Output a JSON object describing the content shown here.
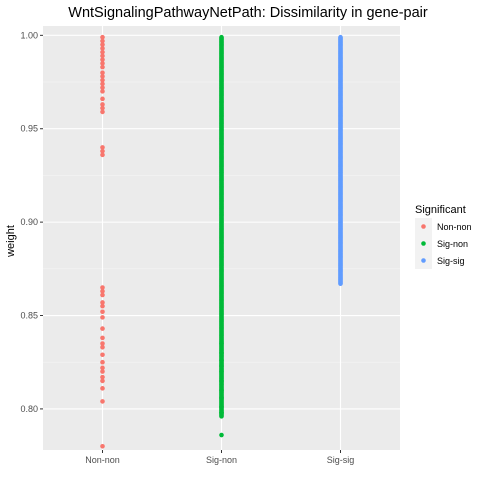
{
  "chart_data": {
    "type": "scatter",
    "title": "WntSignalingPathwayNetPath: Dissimilarity in gene-pair",
    "xlabel": "",
    "ylabel": "weight",
    "categories": [
      "Non-non",
      "Sig-non",
      "Sig-sig"
    ],
    "ylim": [
      0.778,
      1.005
    ],
    "yticks": [
      0.8,
      0.85,
      0.9,
      0.95,
      1.0
    ],
    "ytick_labels": [
      "0.80",
      "0.85",
      "0.90",
      "0.95",
      "1.00"
    ],
    "grid": true,
    "legend": {
      "title": "Significant",
      "placement": "right",
      "entries": [
        "Non-non",
        "Sig-non",
        "Sig-sig"
      ]
    },
    "colors": {
      "Non-non": "#F8766D",
      "Sig-non": "#00BA38",
      "Sig-sig": "#619CFF",
      "panel": "#EBEBEB",
      "grid": "#FFFFFF"
    },
    "series": [
      {
        "name": "Non-non",
        "x": "Non-non",
        "values": [
          0.999,
          0.997,
          0.995,
          0.993,
          0.991,
          0.989,
          0.987,
          0.985,
          0.983,
          0.98,
          0.978,
          0.976,
          0.974,
          0.972,
          0.97,
          0.966,
          0.963,
          0.961,
          0.959,
          0.94,
          0.938,
          0.936,
          0.865,
          0.863,
          0.861,
          0.857,
          0.855,
          0.852,
          0.849,
          0.843,
          0.838,
          0.835,
          0.833,
          0.829,
          0.825,
          0.822,
          0.82,
          0.817,
          0.815,
          0.811,
          0.804,
          0.78
        ]
      },
      {
        "name": "Sig-non",
        "x": "Sig-non",
        "range_min": 0.796,
        "range_max": 0.999,
        "extra_values": [
          0.786,
          0.798,
          0.801,
          0.806,
          0.81,
          0.815,
          0.82,
          0.823,
          0.826,
          0.83,
          0.835
        ]
      },
      {
        "name": "Sig-sig",
        "x": "Sig-sig",
        "range_min": 0.867,
        "range_max": 0.999
      }
    ]
  }
}
